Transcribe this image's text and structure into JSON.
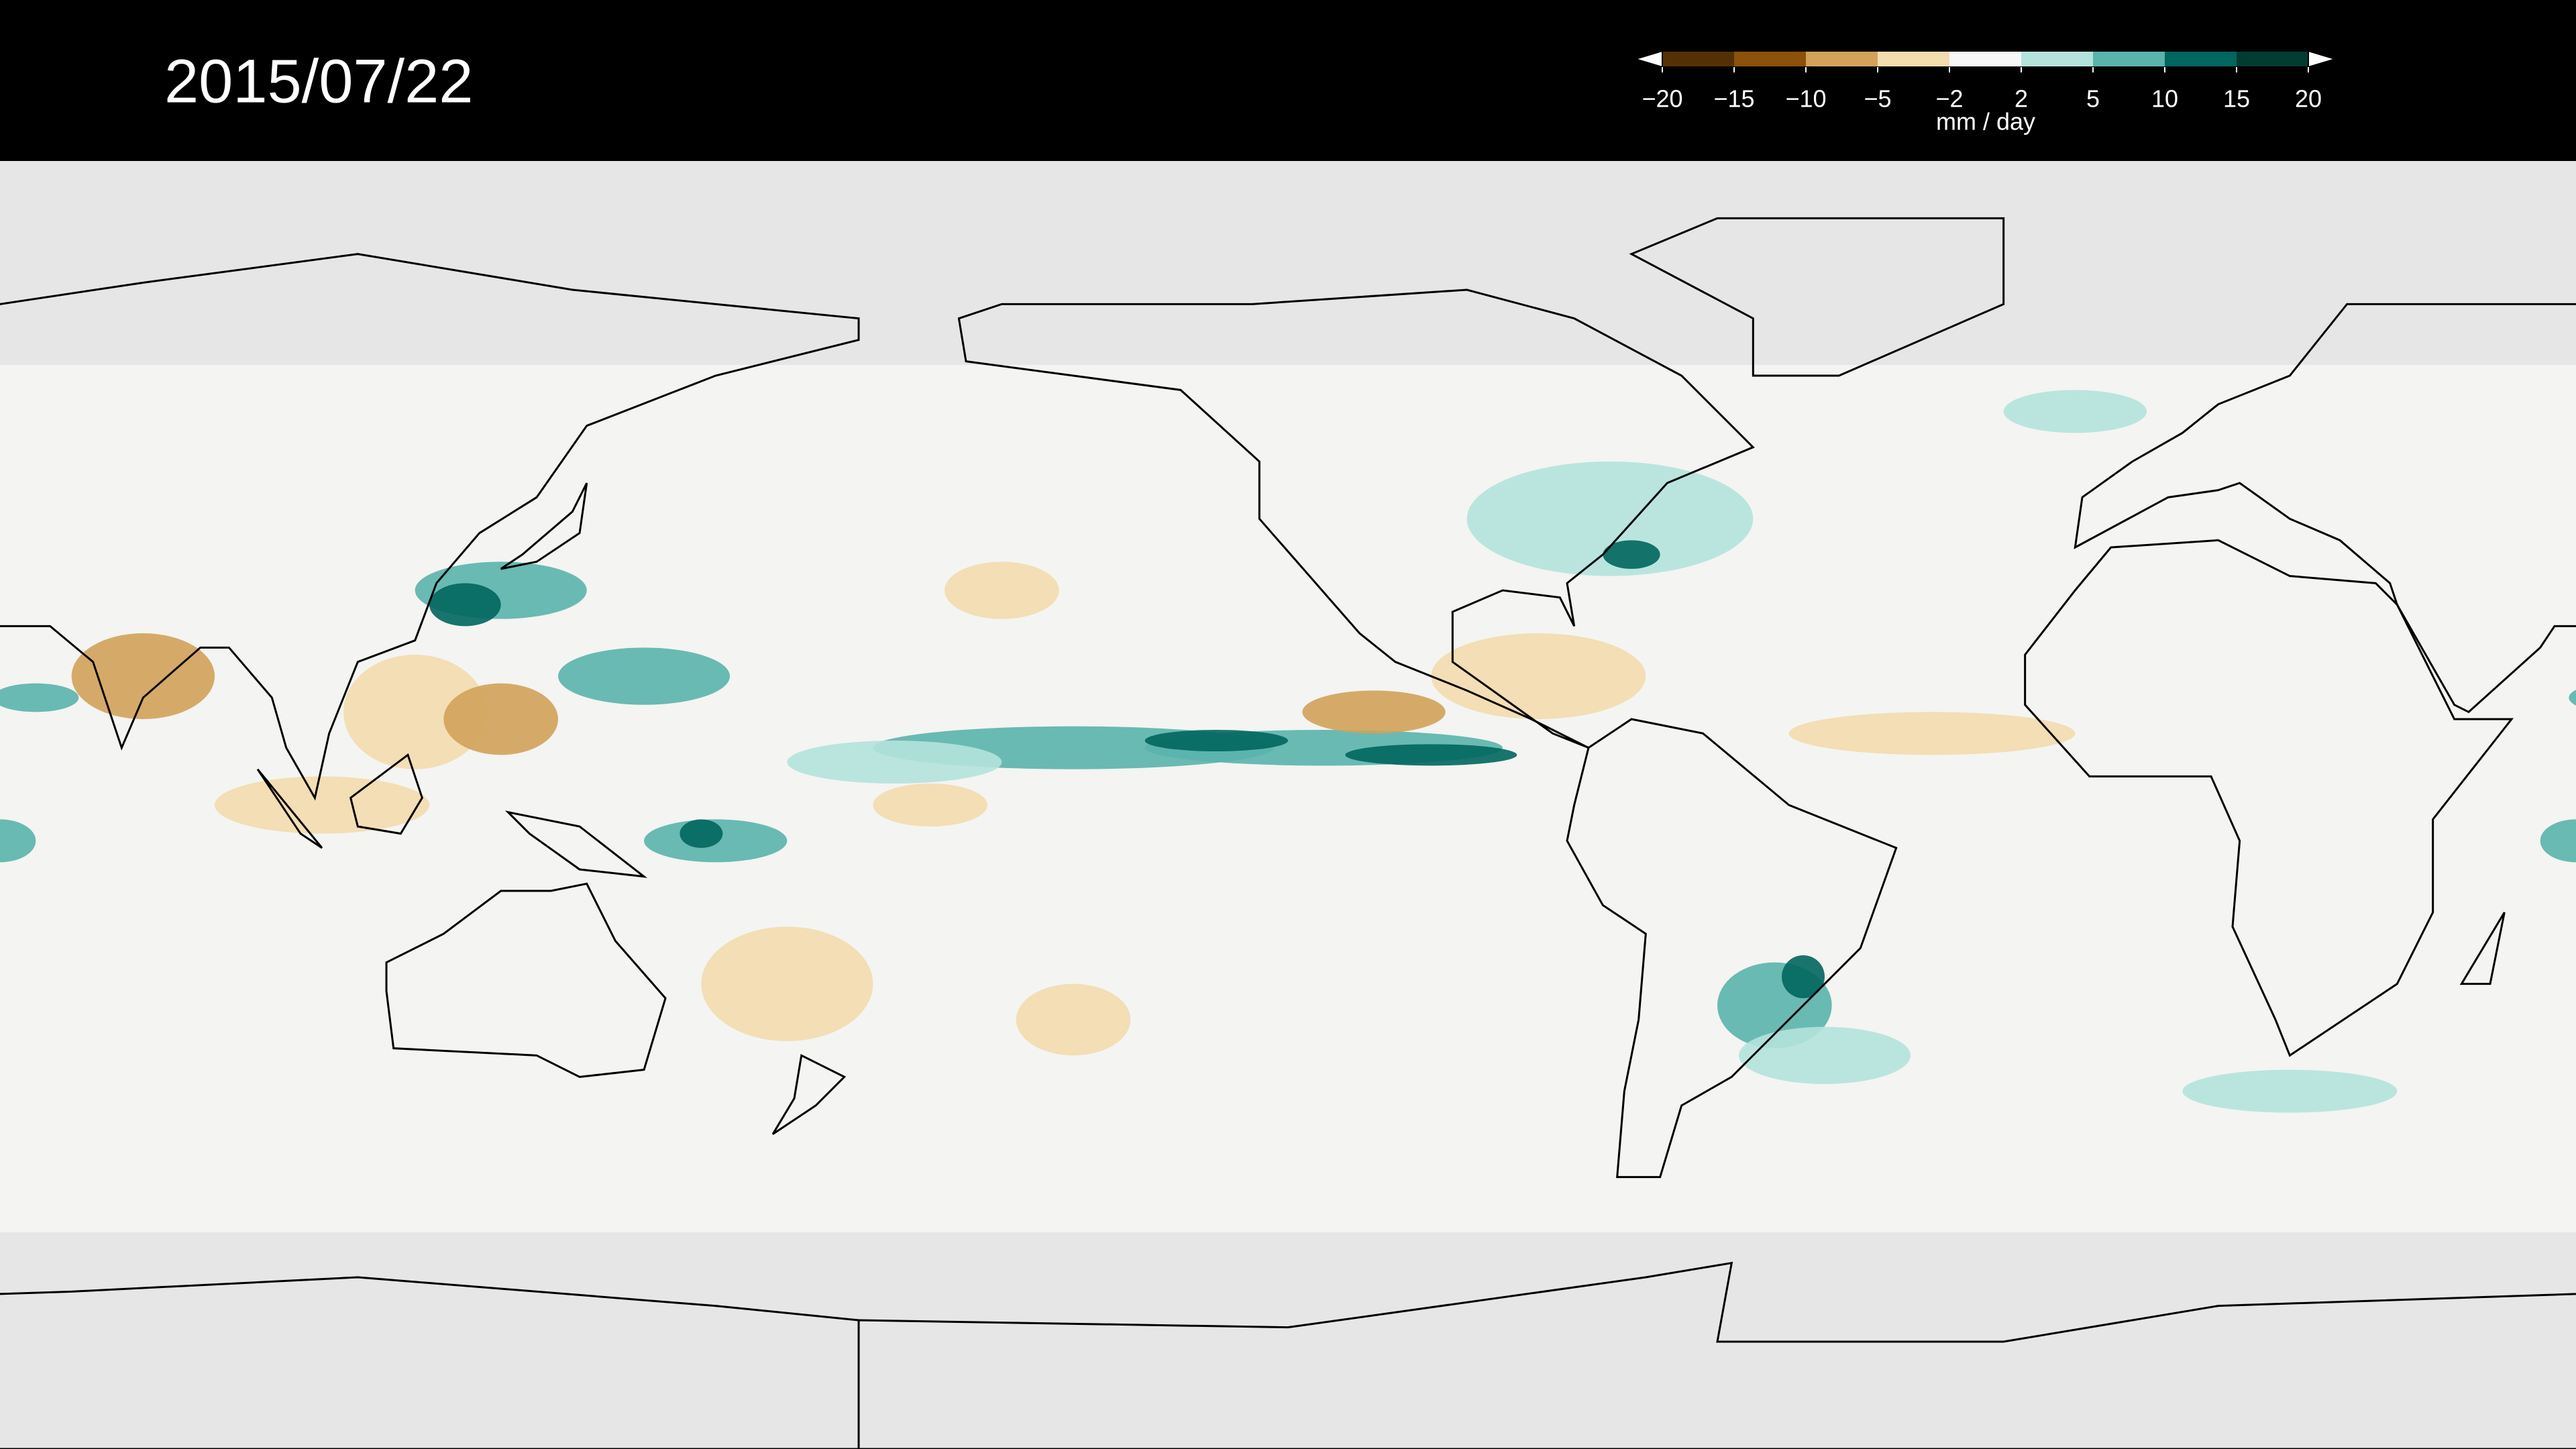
{
  "date": "2015/07/22",
  "colorbar": {
    "label": "mm / day",
    "ticks": [
      {
        "value": -20,
        "label": "−20"
      },
      {
        "value": -15,
        "label": "−15"
      },
      {
        "value": -10,
        "label": "−10"
      },
      {
        "value": -5,
        "label": "−5"
      },
      {
        "value": -2,
        "label": "−2"
      },
      2,
      5,
      10,
      15,
      20
    ],
    "colors": [
      "#543005",
      "#8c510a",
      "#d2a25a",
      "#f3dcae",
      "#f7f7f7",
      "#b4e3dc",
      "#5ab4ac",
      "#01665e",
      "#003c30"
    ]
  }
}
